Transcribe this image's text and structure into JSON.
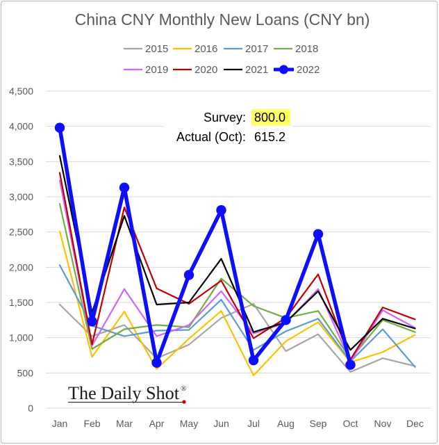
{
  "chart_data": {
    "type": "line",
    "title": "China CNY Monthly New Loans (CNY bn)",
    "categories": [
      "Jan",
      "Feb",
      "Mar",
      "Apr",
      "May",
      "Jun",
      "Jul",
      "Aug",
      "Sep",
      "Oct",
      "Nov",
      "Dec"
    ],
    "ylim": [
      0,
      4500
    ],
    "ytick_values": [
      0,
      500,
      1000,
      1500,
      2000,
      2500,
      3000,
      3500,
      4000,
      4500
    ],
    "ytick_labels": [
      "0",
      "500",
      "1,000",
      "1,500",
      "2,000",
      "2,500",
      "3,000",
      "3,500",
      "4,000",
      "4,500"
    ],
    "grid": true,
    "legend_position": "top",
    "series": [
      {
        "name": "2015",
        "color": "#a6a6a6",
        "values": [
          1470,
          1020,
          1180,
          708,
          901,
          1280,
          1480,
          809,
          1050,
          514,
          709,
          597
        ]
      },
      {
        "name": "2016",
        "color": "#ffc000",
        "values": [
          2510,
          727,
          1370,
          556,
          986,
          1380,
          464,
          949,
          1220,
          651,
          795,
          1040
        ]
      },
      {
        "name": "2017",
        "color": "#5b9bd5",
        "values": [
          2030,
          1170,
          1020,
          1100,
          1110,
          1540,
          826,
          1090,
          1270,
          664,
          1120,
          584
        ]
      },
      {
        "name": "2018",
        "color": "#70ad47",
        "values": [
          2900,
          839,
          1120,
          1180,
          1150,
          1840,
          1450,
          1280,
          1380,
          697,
          1250,
          1080
        ]
      },
      {
        "name": "2019",
        "color": "#cc66ff",
        "values": [
          3230,
          886,
          1690,
          1020,
          1180,
          1660,
          1060,
          1210,
          1690,
          661,
          1390,
          1140
        ]
      },
      {
        "name": "2020",
        "color": "#c00000",
        "values": [
          3340,
          906,
          2850,
          1700,
          1480,
          1810,
          992,
          1280,
          1900,
          689,
          1430,
          1260
        ]
      },
      {
        "name": "2021",
        "color": "#000000",
        "values": [
          3580,
          1360,
          2730,
          1470,
          1500,
          2120,
          1080,
          1220,
          1660,
          826,
          1270,
          1130
        ]
      },
      {
        "name": "2022",
        "color": "#0d0dff",
        "marker": "circle",
        "values": [
          3980,
          1230,
          3130,
          645,
          1890,
          2810,
          679,
          1250,
          2470,
          615.2,
          null,
          null
        ]
      }
    ]
  },
  "annotation": {
    "survey_label": "Survey:",
    "survey_value": "800.0",
    "actual_label": "Actual (Oct):",
    "actual_value": "615.2",
    "highlight_color": "#ffff66"
  },
  "watermark": {
    "text": "The Daily Shot",
    "registered_mark": "®"
  }
}
